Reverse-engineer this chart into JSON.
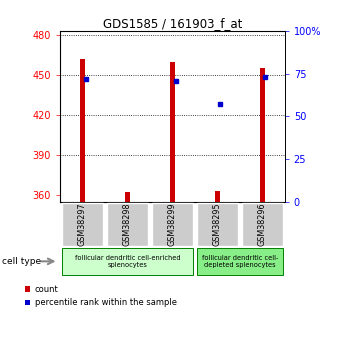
{
  "title": "GDS1585 / 161903_f_at",
  "samples": [
    "GSM38297",
    "GSM38298",
    "GSM38299",
    "GSM38295",
    "GSM38296"
  ],
  "count_values": [
    462,
    362,
    460,
    363,
    455
  ],
  "percentile_values": [
    72,
    0,
    71,
    57,
    73
  ],
  "ylim_left": [
    355,
    483
  ],
  "yticks_left": [
    360,
    390,
    420,
    450,
    480
  ],
  "ylim_right": [
    0,
    100
  ],
  "yticks_right": [
    0,
    25,
    50,
    75,
    100
  ],
  "bar_color": "#cc0000",
  "dot_color": "#0000cc",
  "group1_label": "follicular dendritic cell-enriched\nsplenocytes",
  "group2_label": "follicular dendritic cell-\ndepleted splenocytes",
  "group1_count": 3,
  "group2_count": 2,
  "group_bg1": "#ccffcc",
  "group_bg2": "#88ee88",
  "sample_bg": "#cccccc",
  "legend_count_label": "count",
  "legend_pct_label": "percentile rank within the sample",
  "cell_type_label": "cell type",
  "bar_width": 0.12
}
